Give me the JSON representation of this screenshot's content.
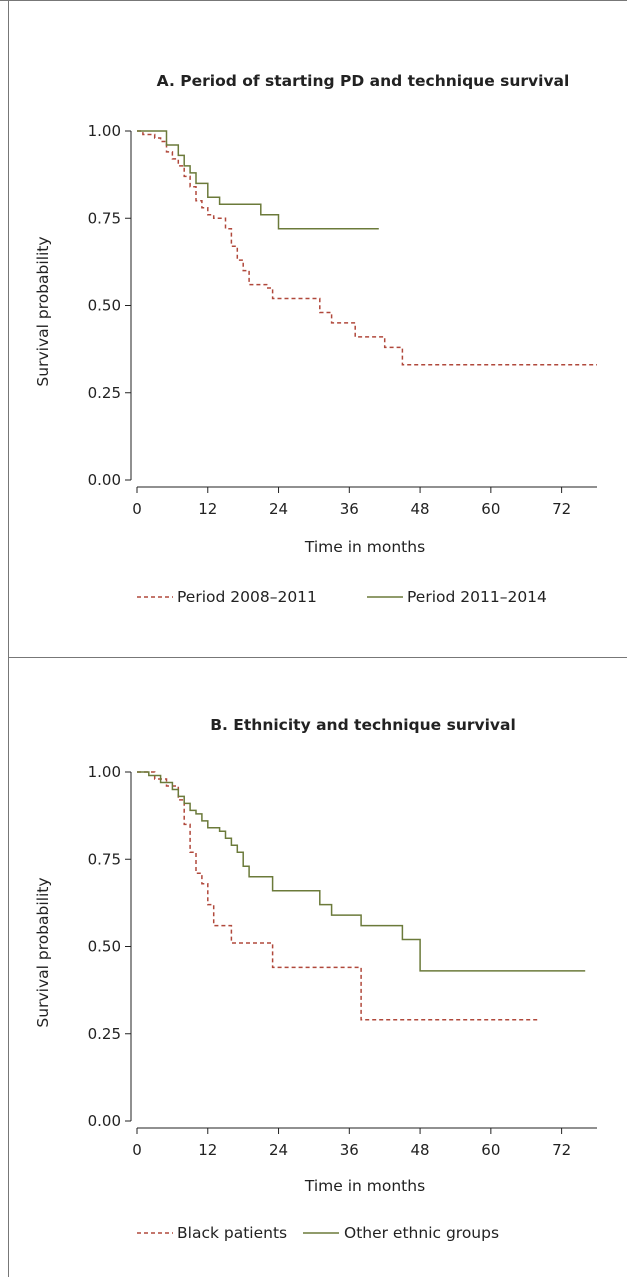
{
  "chart_data": [
    {
      "type": "line",
      "subtype": "kaplan-meier step",
      "title": "A. Period of starting PD and technique survival",
      "xlabel": "Time in months",
      "ylabel": "Survival probability",
      "xlim": [
        0,
        78
      ],
      "ylim": [
        0,
        1
      ],
      "x_ticks": [
        "0",
        "12",
        "24",
        "36",
        "48",
        "60",
        "72"
      ],
      "y_ticks": [
        "0.00",
        "0.25",
        "0.50",
        "0.75",
        "1.00"
      ],
      "grid": false,
      "legend_position": "bottom",
      "series": [
        {
          "name": "Period 2008–2011",
          "color": "#b0483b",
          "dash": "dashed",
          "points": [
            [
              0,
              1.0
            ],
            [
              1,
              0.99
            ],
            [
              3,
              0.98
            ],
            [
              4,
              0.97
            ],
            [
              5,
              0.94
            ],
            [
              6,
              0.92
            ],
            [
              7,
              0.9
            ],
            [
              8,
              0.87
            ],
            [
              9,
              0.84
            ],
            [
              10,
              0.8
            ],
            [
              11,
              0.78
            ],
            [
              12,
              0.76
            ],
            [
              13,
              0.75
            ],
            [
              15,
              0.72
            ],
            [
              16,
              0.67
            ],
            [
              17,
              0.63
            ],
            [
              18,
              0.6
            ],
            [
              19,
              0.56
            ],
            [
              22,
              0.55
            ],
            [
              23,
              0.52
            ],
            [
              31,
              0.48
            ],
            [
              33,
              0.45
            ],
            [
              37,
              0.41
            ],
            [
              42,
              0.38
            ],
            [
              45,
              0.33
            ],
            [
              78,
              0.33
            ]
          ]
        },
        {
          "name": "Period 2011–2014",
          "color": "#6b7a3a",
          "dash": "solid",
          "points": [
            [
              0,
              1.0
            ],
            [
              5,
              0.96
            ],
            [
              7,
              0.93
            ],
            [
              8,
              0.9
            ],
            [
              9,
              0.88
            ],
            [
              10,
              0.85
            ],
            [
              12,
              0.81
            ],
            [
              14,
              0.79
            ],
            [
              21,
              0.76
            ],
            [
              24,
              0.72
            ],
            [
              41,
              0.72
            ]
          ]
        }
      ]
    },
    {
      "type": "line",
      "subtype": "kaplan-meier step",
      "title": "B. Ethnicity and technique survival",
      "xlabel": "Time in months",
      "ylabel": "Survival probability",
      "xlim": [
        0,
        78
      ],
      "ylim": [
        0,
        1
      ],
      "x_ticks": [
        "0",
        "12",
        "24",
        "36",
        "48",
        "60",
        "72"
      ],
      "y_ticks": [
        "0.00",
        "0.25",
        "0.50",
        "0.75",
        "1.00"
      ],
      "grid": false,
      "legend_position": "bottom",
      "series": [
        {
          "name": "Black patients",
          "color": "#b0483b",
          "dash": "dashed",
          "points": [
            [
              0,
              1.0
            ],
            [
              3,
              0.98
            ],
            [
              5,
              0.96
            ],
            [
              7,
              0.92
            ],
            [
              8,
              0.85
            ],
            [
              9,
              0.77
            ],
            [
              10,
              0.71
            ],
            [
              11,
              0.68
            ],
            [
              12,
              0.62
            ],
            [
              13,
              0.56
            ],
            [
              16,
              0.51
            ],
            [
              23,
              0.44
            ],
            [
              38,
              0.29
            ],
            [
              68,
              0.29
            ]
          ]
        },
        {
          "name": "Other ethnic groups",
          "color": "#6b7a3a",
          "dash": "solid",
          "points": [
            [
              0,
              1.0
            ],
            [
              2,
              0.99
            ],
            [
              4,
              0.97
            ],
            [
              6,
              0.95
            ],
            [
              7,
              0.93
            ],
            [
              8,
              0.91
            ],
            [
              9,
              0.89
            ],
            [
              10,
              0.88
            ],
            [
              11,
              0.86
            ],
            [
              12,
              0.84
            ],
            [
              14,
              0.83
            ],
            [
              15,
              0.81
            ],
            [
              16,
              0.79
            ],
            [
              17,
              0.77
            ],
            [
              18,
              0.73
            ],
            [
              19,
              0.7
            ],
            [
              23,
              0.66
            ],
            [
              31,
              0.62
            ],
            [
              33,
              0.59
            ],
            [
              38,
              0.56
            ],
            [
              45,
              0.52
            ],
            [
              48,
              0.43
            ],
            [
              76,
              0.43
            ]
          ]
        }
      ]
    }
  ]
}
